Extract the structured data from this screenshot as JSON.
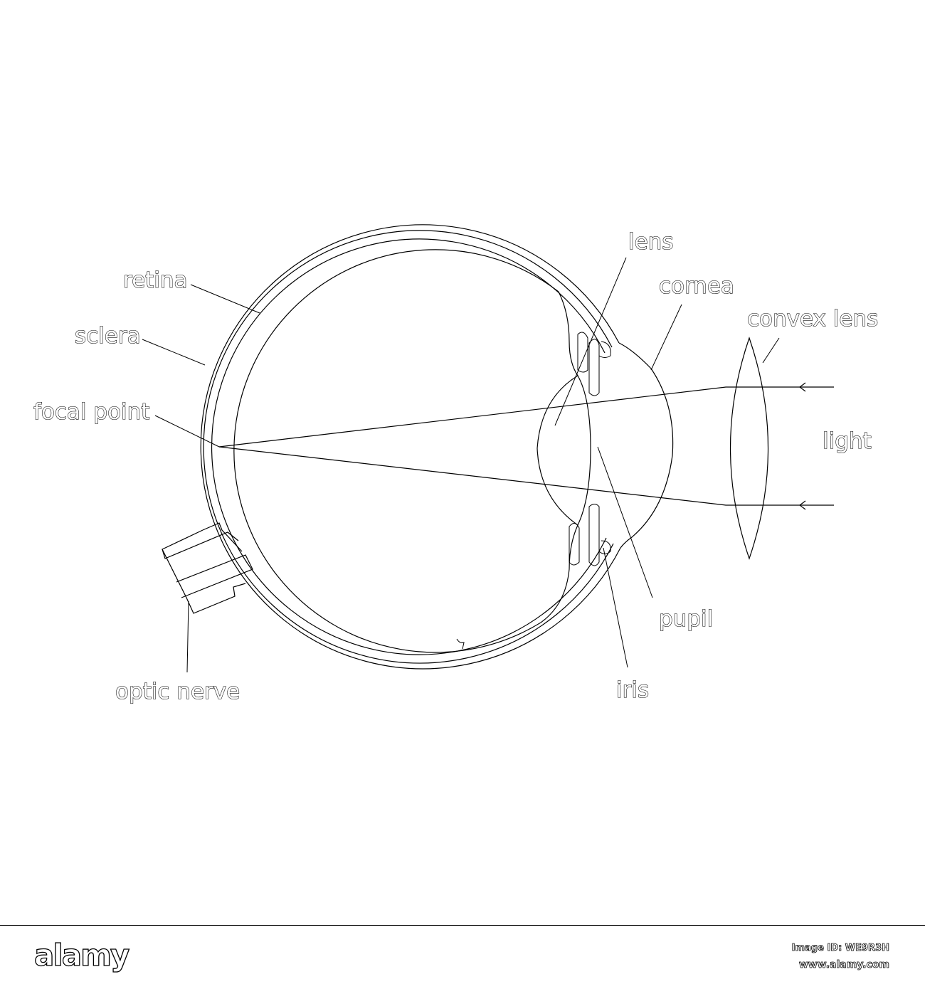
{
  "diagram": {
    "labels": {
      "retina": "retina",
      "sclera": "sclera",
      "focal_point": "focal point",
      "optic_nerve": "optic nerve",
      "lens": "lens",
      "cornea": "cornea",
      "convex_lens": "convex lens",
      "light": "light",
      "pupil": "pupil",
      "iris": "iris"
    }
  },
  "footer": {
    "logo": "alamy",
    "image_id": "Image ID: WE9R3H",
    "website": "www.alamy.com"
  }
}
